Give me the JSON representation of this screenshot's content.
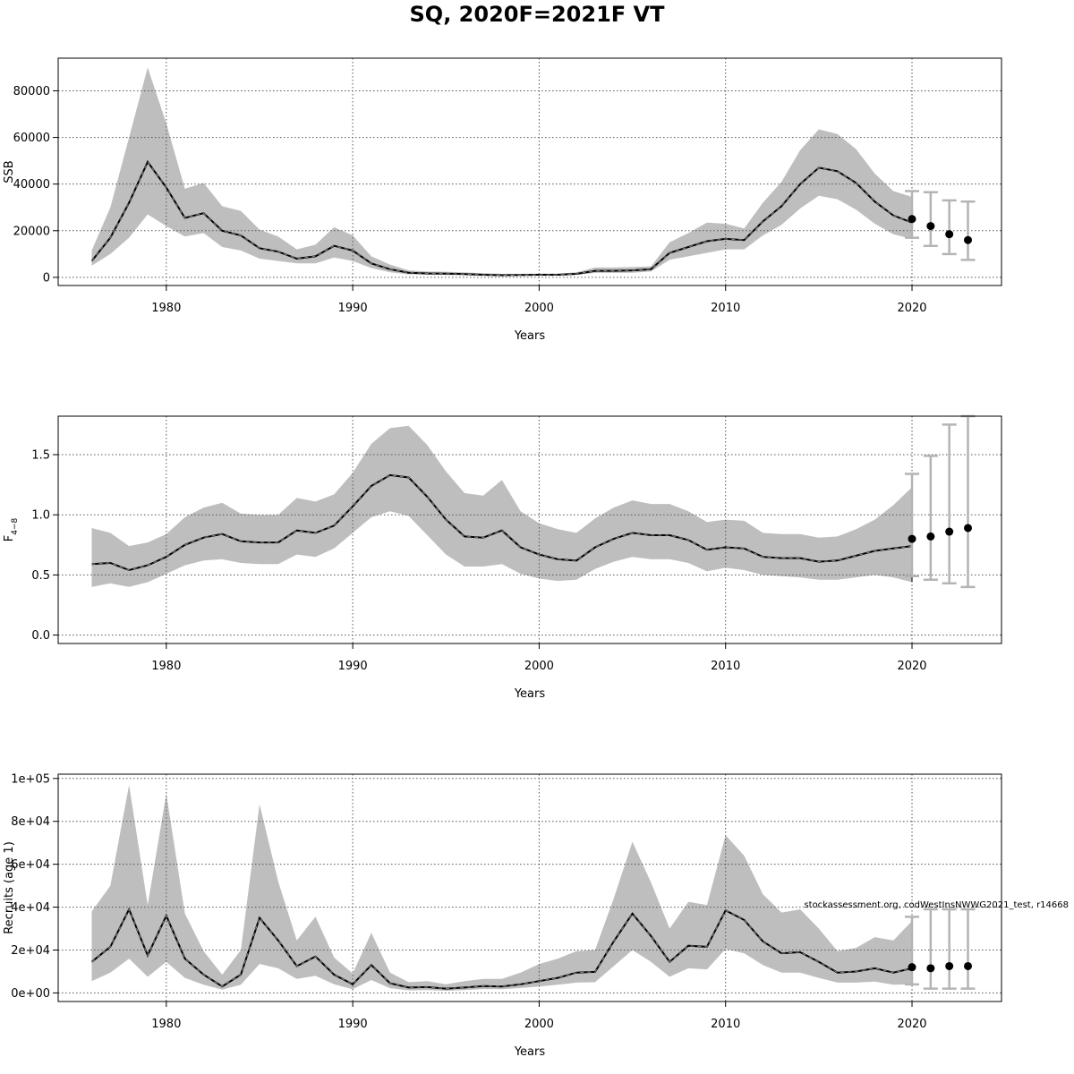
{
  "title": "SQ, 2020F=2021F VT",
  "watermark": "stockassessment.org, codWestInsNWWG2021_test, r14668",
  "colors": {
    "band": "#bebebe",
    "line": "#000000",
    "errorbar": "#b4b4b4",
    "grid": "#555555"
  },
  "chart_data": [
    {
      "type": "area",
      "ylabel": "SSB",
      "xlabel": "Years",
      "xlim": [
        1974.2,
        2024.8
      ],
      "ylim": [
        -3500,
        94000
      ],
      "xticks": [
        1980,
        1990,
        2000,
        2010,
        2020
      ],
      "yticks": [
        0,
        20000,
        40000,
        60000,
        80000
      ],
      "ytick_labels": [
        "0",
        "20000",
        "40000",
        "60000",
        "80000"
      ],
      "grid": true,
      "years": [
        1976,
        1977,
        1978,
        1979,
        1980,
        1981,
        1982,
        1983,
        1984,
        1985,
        1986,
        1987,
        1988,
        1989,
        1990,
        1991,
        1992,
        1993,
        1994,
        1995,
        1996,
        1997,
        1998,
        1999,
        2000,
        2001,
        2002,
        2003,
        2004,
        2005,
        2006,
        2007,
        2008,
        2009,
        2010,
        2011,
        2012,
        2013,
        2014,
        2015,
        2016,
        2017,
        2018,
        2019,
        2020
      ],
      "estimate": [
        7000,
        17000,
        32000,
        49500,
        38500,
        25500,
        27500,
        20000,
        18000,
        12500,
        11000,
        8000,
        9000,
        13500,
        11500,
        6000,
        3500,
        2000,
        1700,
        1600,
        1400,
        1100,
        900,
        1000,
        1100,
        1100,
        1500,
        2800,
        2800,
        3000,
        3500,
        10500,
        13000,
        15500,
        16500,
        16000,
        24000,
        30500,
        40000,
        47000,
        45500,
        40500,
        32500,
        26500,
        23500
      ],
      "lower": [
        5000,
        10000,
        17000,
        27000,
        22000,
        17500,
        19000,
        13000,
        11500,
        8000,
        7000,
        6000,
        6000,
        8500,
        7000,
        4000,
        2200,
        1300,
        1100,
        1000,
        900,
        700,
        600,
        700,
        750,
        750,
        1000,
        1900,
        1900,
        2000,
        2500,
        7500,
        9000,
        10500,
        12000,
        12000,
        18000,
        22500,
        29500,
        35000,
        33500,
        29000,
        23000,
        18500,
        16500
      ],
      "upper": [
        11500,
        30000,
        60000,
        90000,
        66000,
        38000,
        40500,
        30500,
        28500,
        20500,
        17500,
        12000,
        14000,
        21500,
        18000,
        9000,
        5500,
        3000,
        2500,
        2400,
        2100,
        1800,
        1500,
        1500,
        1600,
        1600,
        2200,
        4200,
        4200,
        4400,
        4700,
        15000,
        19000,
        23500,
        23000,
        21000,
        32000,
        41000,
        54500,
        63500,
        61500,
        55000,
        44500,
        37000,
        34500
      ],
      "forecast": {
        "years": [
          2020,
          2021,
          2022,
          2023
        ],
        "median": [
          25000,
          22000,
          18500,
          16000
        ],
        "lower": [
          17000,
          13500,
          10000,
          7500
        ],
        "upper": [
          37000,
          36500,
          33000,
          32500
        ]
      }
    },
    {
      "type": "area",
      "ylabel": "F",
      "ylabel_sub": "4−8",
      "xlabel": "Years",
      "xlim": [
        1974.2,
        2024.8
      ],
      "ylim": [
        -0.07,
        1.82
      ],
      "xticks": [
        1980,
        1990,
        2000,
        2010,
        2020
      ],
      "yticks": [
        0,
        0.5,
        1.0,
        1.5
      ],
      "ytick_labels": [
        "0.0",
        "0.5",
        "1.0",
        "1.5"
      ],
      "grid": true,
      "years": [
        1976,
        1977,
        1978,
        1979,
        1980,
        1981,
        1982,
        1983,
        1984,
        1985,
        1986,
        1987,
        1988,
        1989,
        1990,
        1991,
        1992,
        1993,
        1994,
        1995,
        1996,
        1997,
        1998,
        1999,
        2000,
        2001,
        2002,
        2003,
        2004,
        2005,
        2006,
        2007,
        2008,
        2009,
        2010,
        2011,
        2012,
        2013,
        2014,
        2015,
        2016,
        2017,
        2018,
        2019,
        2020
      ],
      "estimate": [
        0.59,
        0.6,
        0.54,
        0.58,
        0.65,
        0.75,
        0.81,
        0.84,
        0.78,
        0.77,
        0.77,
        0.87,
        0.85,
        0.91,
        1.07,
        1.24,
        1.33,
        1.31,
        1.15,
        0.96,
        0.82,
        0.81,
        0.87,
        0.73,
        0.67,
        0.63,
        0.62,
        0.73,
        0.8,
        0.85,
        0.83,
        0.83,
        0.79,
        0.71,
        0.73,
        0.72,
        0.65,
        0.64,
        0.64,
        0.61,
        0.62,
        0.66,
        0.7,
        0.72,
        0.74
      ],
      "lower": [
        0.4,
        0.43,
        0.4,
        0.44,
        0.51,
        0.58,
        0.62,
        0.63,
        0.6,
        0.59,
        0.59,
        0.67,
        0.65,
        0.72,
        0.85,
        0.98,
        1.03,
        0.99,
        0.83,
        0.67,
        0.57,
        0.57,
        0.59,
        0.51,
        0.47,
        0.45,
        0.46,
        0.55,
        0.61,
        0.65,
        0.63,
        0.63,
        0.6,
        0.53,
        0.56,
        0.54,
        0.5,
        0.49,
        0.48,
        0.46,
        0.46,
        0.48,
        0.5,
        0.48,
        0.44
      ],
      "upper": [
        0.89,
        0.85,
        0.74,
        0.77,
        0.84,
        0.98,
        1.06,
        1.1,
        1.01,
        1.0,
        1.0,
        1.14,
        1.11,
        1.17,
        1.35,
        1.59,
        1.72,
        1.74,
        1.58,
        1.36,
        1.18,
        1.16,
        1.29,
        1.03,
        0.93,
        0.88,
        0.85,
        0.97,
        1.06,
        1.12,
        1.09,
        1.09,
        1.03,
        0.94,
        0.96,
        0.95,
        0.85,
        0.84,
        0.84,
        0.81,
        0.82,
        0.88,
        0.96,
        1.08,
        1.23
      ],
      "forecast": {
        "years": [
          2020,
          2021,
          2022,
          2023
        ],
        "median": [
          0.8,
          0.82,
          0.86,
          0.89
        ],
        "lower": [
          0.49,
          0.46,
          0.43,
          0.4
        ],
        "upper": [
          1.34,
          1.49,
          1.75,
          1.82
        ]
      }
    },
    {
      "type": "area",
      "ylabel": "Recruits (age 1)",
      "xlabel": "Years",
      "xlim": [
        1974.2,
        2024.8
      ],
      "ylim": [
        -4000,
        102000
      ],
      "xticks": [
        1980,
        1990,
        2000,
        2010,
        2020
      ],
      "yticks": [
        0,
        20000,
        40000,
        60000,
        80000,
        100000
      ],
      "ytick_labels": [
        "0e+00",
        "2e+04",
        "4e+04",
        "6e+04",
        "8e+04",
        "1e+05"
      ],
      "grid": true,
      "years": [
        1976,
        1977,
        1978,
        1979,
        1980,
        1981,
        1982,
        1983,
        1984,
        1985,
        1986,
        1987,
        1988,
        1989,
        1990,
        1991,
        1992,
        1993,
        1994,
        1995,
        1996,
        1997,
        1998,
        1999,
        2000,
        2001,
        2002,
        2003,
        2004,
        2005,
        2006,
        2007,
        2008,
        2009,
        2010,
        2011,
        2012,
        2013,
        2014,
        2015,
        2016,
        2017,
        2018,
        2019,
        2020
      ],
      "estimate": [
        14500,
        21500,
        39000,
        17500,
        36000,
        16000,
        8500,
        3000,
        8500,
        35000,
        24500,
        12500,
        17000,
        8500,
        4000,
        13000,
        4500,
        2500,
        2700,
        2000,
        2500,
        3200,
        3000,
        4000,
        5500,
        7000,
        9500,
        9800,
        24000,
        37000,
        26500,
        14500,
        22000,
        21500,
        38500,
        34000,
        24000,
        18500,
        19000,
        14500,
        9500,
        10000,
        11500,
        9500,
        11500
      ],
      "lower": [
        5500,
        9500,
        16000,
        7500,
        14500,
        7000,
        3800,
        1500,
        3800,
        13500,
        11500,
        6500,
        8000,
        4000,
        1700,
        6000,
        2200,
        1200,
        1300,
        1000,
        1300,
        1800,
        1700,
        2300,
        3000,
        3800,
        4800,
        5000,
        12500,
        20000,
        14500,
        7500,
        11500,
        11000,
        20500,
        18500,
        13000,
        9500,
        9500,
        7000,
        4800,
        4800,
        5300,
        3800,
        4000
      ],
      "upper": [
        38000,
        50000,
        97000,
        41000,
        93000,
        37000,
        19500,
        8500,
        20000,
        88000,
        52000,
        24500,
        35500,
        16500,
        9000,
        28000,
        9500,
        5000,
        5500,
        4000,
        5500,
        6500,
        6500,
        9500,
        13500,
        16000,
        19500,
        20000,
        44000,
        70500,
        51500,
        30000,
        42500,
        41000,
        73500,
        64000,
        46000,
        37500,
        39000,
        30000,
        19500,
        21000,
        26000,
        24500,
        33500
      ],
      "forecast": {
        "years": [
          2020,
          2021,
          2022,
          2023
        ],
        "median": [
          12000,
          11500,
          12500,
          12500
        ],
        "lower": [
          4000,
          2000,
          2000,
          2000
        ],
        "upper": [
          35500,
          39000,
          39000,
          39000
        ]
      }
    }
  ]
}
